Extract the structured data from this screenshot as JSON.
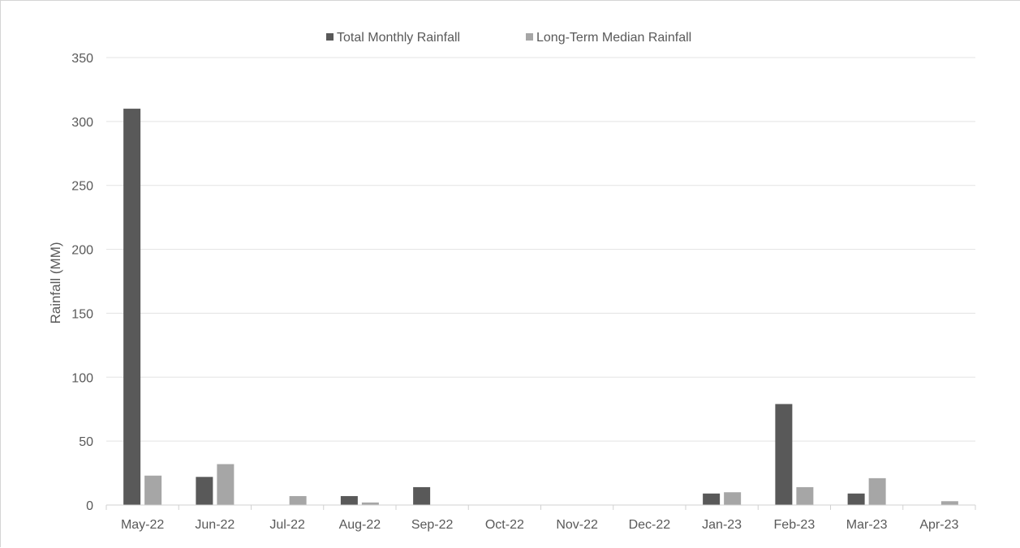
{
  "chart_data": {
    "type": "bar",
    "ylabel": "Rainfall (MM)",
    "ylim": [
      0,
      350
    ],
    "yticks": [
      "0",
      "50",
      "100",
      "150",
      "200",
      "250",
      "300",
      "350"
    ],
    "grid": true,
    "legend_position": "top-center",
    "categories": [
      "May-22",
      "Jun-22",
      "Jul-22",
      "Aug-22",
      "Sep-22",
      "Oct-22",
      "Nov-22",
      "Dec-22",
      "Jan-23",
      "Feb-23",
      "Mar-23",
      "Apr-23"
    ],
    "series": [
      {
        "name": "Total Monthly Rainfall",
        "color": "#595959",
        "values": [
          310,
          22,
          0,
          7,
          14,
          0,
          0,
          0,
          9,
          79,
          9,
          0
        ]
      },
      {
        "name": "Long-Term Median Rainfall",
        "color": "#a6a6a6",
        "values": [
          23,
          32,
          7,
          2,
          0,
          0,
          0,
          0,
          10,
          14,
          21,
          3
        ]
      }
    ]
  }
}
